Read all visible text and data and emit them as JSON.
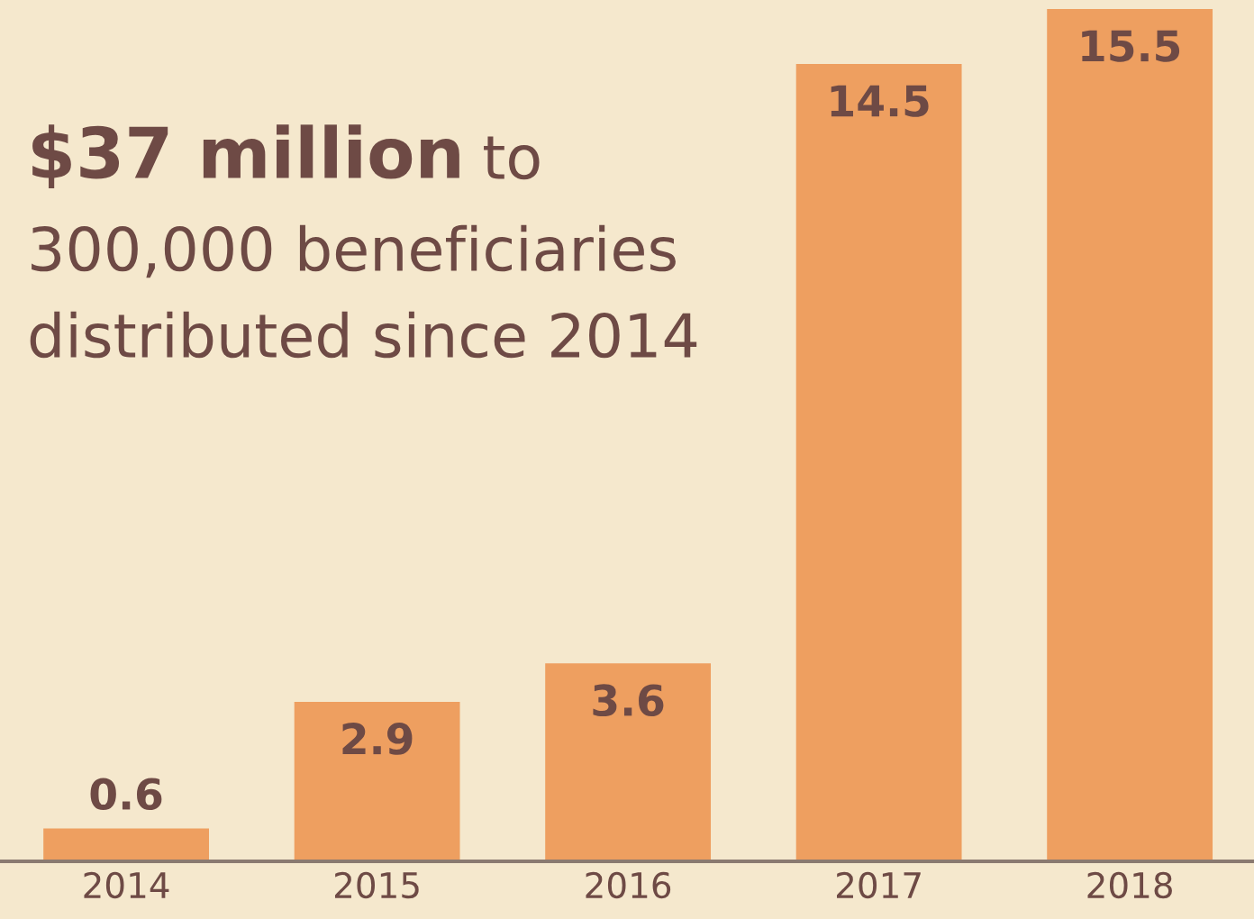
{
  "chart_data": {
    "type": "bar",
    "title": "$37 million",
    "subtitle": "to\n300,000 beneficiaries\ndistributed since 2014",
    "categories": [
      "2014",
      "2015",
      "2016",
      "2017",
      "2018"
    ],
    "values": [
      0.6,
      2.9,
      3.6,
      14.5,
      15.5
    ],
    "color": "#ee9f60",
    "data_labels": true,
    "grid": false
  }
}
